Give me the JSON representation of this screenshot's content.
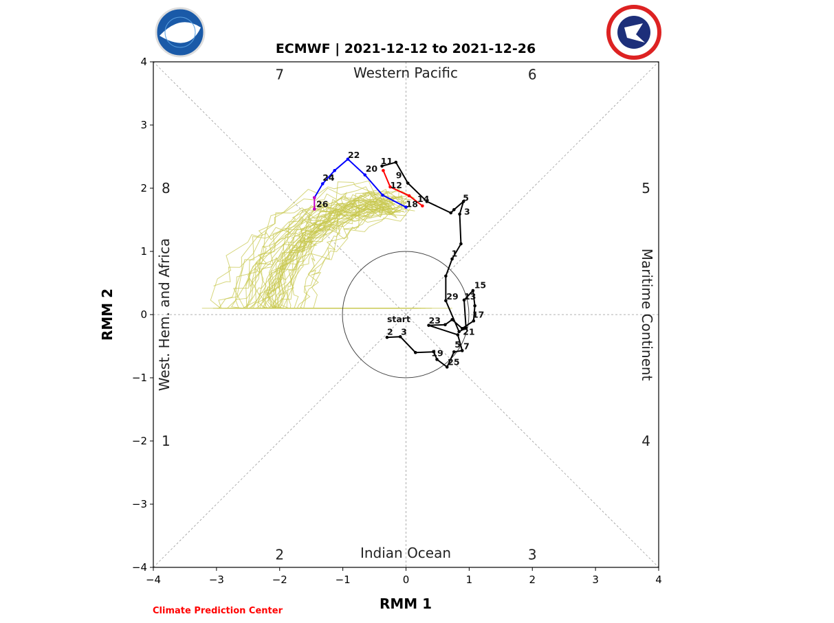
{
  "chart_data": {
    "type": "line",
    "title": "ECMWF | 2021-12-12 to 2021-12-26",
    "xlabel": "RMM 1",
    "ylabel": "RMM 2",
    "xlim": [
      -4,
      4
    ],
    "ylim": [
      -4,
      4
    ],
    "xticks": [
      "−4",
      "−3",
      "−2",
      "−1",
      "0",
      "1",
      "2",
      "3",
      "4"
    ],
    "yticks": [
      "−4",
      "−3",
      "−2",
      "−1",
      "0",
      "1",
      "2",
      "3",
      "4"
    ],
    "grid": "dashed diagonals and axes",
    "phases": [
      {
        "label": "1",
        "x": -3.8,
        "y": -2.0
      },
      {
        "label": "2",
        "x": -2.0,
        "y": -3.8
      },
      {
        "label": "3",
        "x": 2.0,
        "y": -3.8
      },
      {
        "label": "4",
        "x": 3.8,
        "y": -2.0
      },
      {
        "label": "5",
        "x": 3.8,
        "y": 2.0
      },
      {
        "label": "6",
        "x": 2.0,
        "y": 3.8
      },
      {
        "label": "7",
        "x": -2.0,
        "y": 3.8
      },
      {
        "label": "8",
        "x": -3.8,
        "y": 2.0
      }
    ],
    "regions": {
      "top": "Western Pacific",
      "bottom": "Indian Ocean",
      "left": "West. Hem. and Africa",
      "right": "Maritime Continent"
    },
    "series": [
      {
        "color": "#000000",
        "points": [
          [
            -0.3,
            -0.36
          ],
          [
            -0.09,
            -0.35
          ],
          [
            0.15,
            -0.6
          ],
          [
            0.44,
            -0.59
          ],
          [
            0.49,
            -0.71
          ],
          [
            0.65,
            -0.83
          ],
          [
            0.76,
            -0.59
          ],
          [
            0.89,
            -0.57
          ],
          [
            0.82,
            -0.32
          ],
          [
            0.36,
            -0.17
          ],
          [
            0.62,
            -0.16
          ],
          [
            0.73,
            -0.08
          ],
          [
            0.89,
            -0.22
          ],
          [
            1.07,
            -0.1
          ],
          [
            1.09,
            0.14
          ],
          [
            1.06,
            0.38
          ],
          [
            0.92,
            0.23
          ],
          [
            0.95,
            -0.21
          ],
          [
            0.84,
            -0.27
          ],
          [
            0.63,
            0.22
          ],
          [
            0.63,
            0.61
          ],
          [
            0.73,
            0.88
          ],
          [
            0.87,
            1.12
          ],
          [
            0.85,
            1.59
          ],
          [
            0.91,
            1.79
          ],
          [
            0.76,
            1.66
          ],
          [
            0.71,
            1.61
          ],
          [
            0.33,
            1.79
          ],
          [
            0.03,
            2.08
          ],
          [
            -0.16,
            2.41
          ],
          [
            -0.38,
            2.35
          ]
        ]
      },
      {
        "color": "#ff0000",
        "points": [
          [
            -0.36,
            2.28
          ],
          [
            -0.25,
            2.02
          ],
          [
            0.05,
            1.88
          ],
          [
            0.26,
            1.72
          ]
        ]
      },
      {
        "color": "#0000ff",
        "points": [
          [
            0.0,
            1.7
          ],
          [
            -0.37,
            1.89
          ],
          [
            -0.65,
            2.21
          ],
          [
            -0.92,
            2.46
          ],
          [
            -1.13,
            2.28
          ],
          [
            -1.32,
            2.07
          ],
          [
            -1.45,
            1.85
          ]
        ]
      },
      {
        "color": "#c000c0",
        "points": [
          [
            -1.45,
            1.85
          ],
          [
            -1.45,
            1.67
          ]
        ]
      }
    ],
    "ensemble_color": "#c8c850",
    "annotations": [
      {
        "text": "start",
        "x": -0.3,
        "y": -0.12
      },
      {
        "text": "2",
        "x": -0.3,
        "y": -0.32
      },
      {
        "text": "3",
        "x": -0.08,
        "y": -0.32
      },
      {
        "text": "23",
        "x": 0.36,
        "y": -0.14
      },
      {
        "text": "29",
        "x": 0.64,
        "y": 0.24
      },
      {
        "text": "15",
        "x": 1.08,
        "y": 0.42
      },
      {
        "text": "13",
        "x": 0.92,
        "y": 0.24
      },
      {
        "text": "17",
        "x": 1.05,
        "y": -0.05
      },
      {
        "text": "21",
        "x": 0.9,
        "y": -0.32
      },
      {
        "text": "5",
        "x": 0.77,
        "y": -0.52
      },
      {
        "text": "7",
        "x": 0.91,
        "y": -0.55
      },
      {
        "text": "25",
        "x": 0.66,
        "y": -0.8
      },
      {
        "text": "19",
        "x": 0.4,
        "y": -0.66
      },
      {
        "text": "1",
        "x": 0.72,
        "y": 0.92
      },
      {
        "text": "3",
        "x": 0.92,
        "y": 1.58
      },
      {
        "text": "5",
        "x": 0.9,
        "y": 1.8
      },
      {
        "text": "9",
        "x": -0.16,
        "y": 2.16
      },
      {
        "text": "11",
        "x": -0.4,
        "y": 2.38
      },
      {
        "text": "20",
        "x": -0.64,
        "y": 2.26
      },
      {
        "text": "12",
        "x": -0.25,
        "y": 2.0
      },
      {
        "text": "14",
        "x": 0.18,
        "y": 1.78
      },
      {
        "text": "18",
        "x": 0.0,
        "y": 1.7
      },
      {
        "text": "22",
        "x": -0.92,
        "y": 2.48
      },
      {
        "text": "24",
        "x": -1.32,
        "y": 2.12
      },
      {
        "text": "26",
        "x": -1.42,
        "y": 1.7
      }
    ]
  },
  "footer": {
    "credit": "Climate Prediction Center",
    "credit_color": "#ff0000"
  },
  "logos": {
    "left": "NOAA",
    "right": "NATIONAL WEATHER SERVICE"
  }
}
